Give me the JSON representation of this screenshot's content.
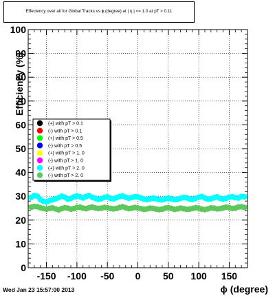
{
  "title": "Effeciency over all for Global Tracks vs ϕ (degree) at | η | <= 1.0 at pT > 0.11",
  "timestamp": "Wed Jan 23 15:57:00 2013",
  "chart_data": {
    "type": "scatter",
    "title": "Effeciency over all for Global Tracks vs ϕ (degree) at | η | <= 1.0 at pT > 0.11",
    "xlabel": "ϕ (degree)",
    "ylabel": "Efficiency (%)",
    "xlim": [
      -180,
      180
    ],
    "ylim": [
      0,
      100
    ],
    "xticks": [
      -150,
      -100,
      -50,
      0,
      50,
      100,
      150
    ],
    "xtick_labels": [
      "-150",
      "-100",
      "-50",
      "0",
      "50",
      "100",
      "150"
    ],
    "yticks": [
      0,
      10,
      20,
      30,
      40,
      50,
      60,
      70,
      80,
      90,
      100
    ],
    "ytick_labels": [
      "0",
      "10",
      "20",
      "30",
      "40",
      "50",
      "60",
      "70",
      "80",
      "90",
      "100"
    ],
    "grid": true,
    "legend_position": "left-middle",
    "series": [
      {
        "name": "(+) with pT > 0.1",
        "color": "#000000",
        "values": []
      },
      {
        "name": "(-) with pT > 0.1",
        "color": "#ff0000",
        "values": []
      },
      {
        "name": "(+) with pT > 0.5",
        "color": "#00ff00",
        "values": []
      },
      {
        "name": "(-) with pT > 0.5",
        "color": "#0000ff",
        "values": []
      },
      {
        "name": "(+) with pT > 1. 0",
        "color": "#ffff00",
        "values": []
      },
      {
        "name": "(-) with pT > 1. 0",
        "color": "#ff00ff",
        "values": []
      },
      {
        "name": "(+) with pT > 2. 0",
        "color": "#00ffff",
        "x": [
          -175,
          -170,
          -165,
          -160,
          -155,
          -150,
          -145,
          -140,
          -135,
          -130,
          -125,
          -120,
          -115,
          -110,
          -105,
          -100,
          -95,
          -90,
          -85,
          -80,
          -75,
          -70,
          -65,
          -60,
          -55,
          -50,
          -45,
          -40,
          -35,
          -30,
          -25,
          -20,
          -15,
          -10,
          -5,
          0,
          5,
          10,
          15,
          20,
          25,
          30,
          35,
          40,
          45,
          50,
          55,
          60,
          65,
          70,
          75,
          80,
          85,
          90,
          95,
          100,
          105,
          110,
          115,
          120,
          125,
          130,
          135,
          140,
          145,
          150,
          155,
          160,
          165,
          170,
          175
        ],
        "values": [
          29.5,
          30.3,
          30.0,
          28.6,
          27.9,
          27.6,
          28.2,
          28.5,
          28.9,
          29.4,
          30.0,
          29.6,
          28.8,
          29.1,
          29.7,
          30.1,
          29.8,
          29.3,
          29.9,
          30.3,
          29.6,
          29.1,
          28.7,
          29.0,
          29.5,
          29.7,
          29.2,
          28.9,
          29.4,
          29.9,
          30.1,
          29.6,
          29.2,
          29.5,
          29.8,
          29.7,
          29.3,
          28.8,
          28.6,
          28.9,
          29.2,
          29.0,
          28.6,
          28.5,
          28.9,
          29.2,
          28.9,
          28.6,
          28.7,
          29.1,
          29.5,
          29.4,
          28.9,
          28.7,
          29.1,
          29.6,
          29.9,
          29.3,
          28.8,
          28.9,
          29.4,
          29.7,
          29.2,
          28.8,
          29.1,
          29.6,
          29.8,
          29.4,
          29.3,
          29.9,
          29.8
        ]
      },
      {
        "name": "(-) with pT > 2. 0",
        "color": "#5ec85e",
        "x": [
          -175,
          -170,
          -165,
          -160,
          -155,
          -150,
          -145,
          -140,
          -135,
          -130,
          -125,
          -120,
          -115,
          -110,
          -105,
          -100,
          -95,
          -90,
          -85,
          -80,
          -75,
          -70,
          -65,
          -60,
          -55,
          -50,
          -45,
          -40,
          -35,
          -30,
          -25,
          -20,
          -15,
          -10,
          -5,
          0,
          5,
          10,
          15,
          20,
          25,
          30,
          35,
          40,
          45,
          50,
          55,
          60,
          65,
          70,
          75,
          80,
          85,
          90,
          95,
          100,
          105,
          110,
          115,
          120,
          125,
          130,
          135,
          140,
          145,
          150,
          155,
          160,
          165,
          170,
          175
        ],
        "values": [
          25.4,
          25.7,
          25.6,
          25.2,
          24.9,
          24.6,
          24.9,
          25.1,
          24.7,
          24.3,
          24.8,
          25.2,
          25.0,
          24.6,
          24.8,
          25.3,
          25.4,
          25.0,
          24.8,
          25.2,
          25.5,
          25.1,
          24.9,
          25.0,
          25.3,
          25.2,
          24.9,
          24.7,
          24.9,
          25.3,
          25.6,
          25.2,
          24.8,
          25.0,
          25.3,
          25.1,
          24.8,
          24.5,
          24.7,
          25.0,
          24.9,
          24.6,
          24.4,
          24.6,
          25.0,
          25.2,
          24.9,
          24.5,
          24.7,
          25.0,
          24.8,
          24.5,
          24.6,
          24.9,
          25.2,
          25.0,
          24.6,
          24.4,
          24.7,
          25.1,
          25.0,
          24.7,
          24.8,
          25.1,
          25.4,
          25.2,
          24.9,
          25.0,
          25.5,
          25.6,
          25.3
        ]
      }
    ]
  }
}
